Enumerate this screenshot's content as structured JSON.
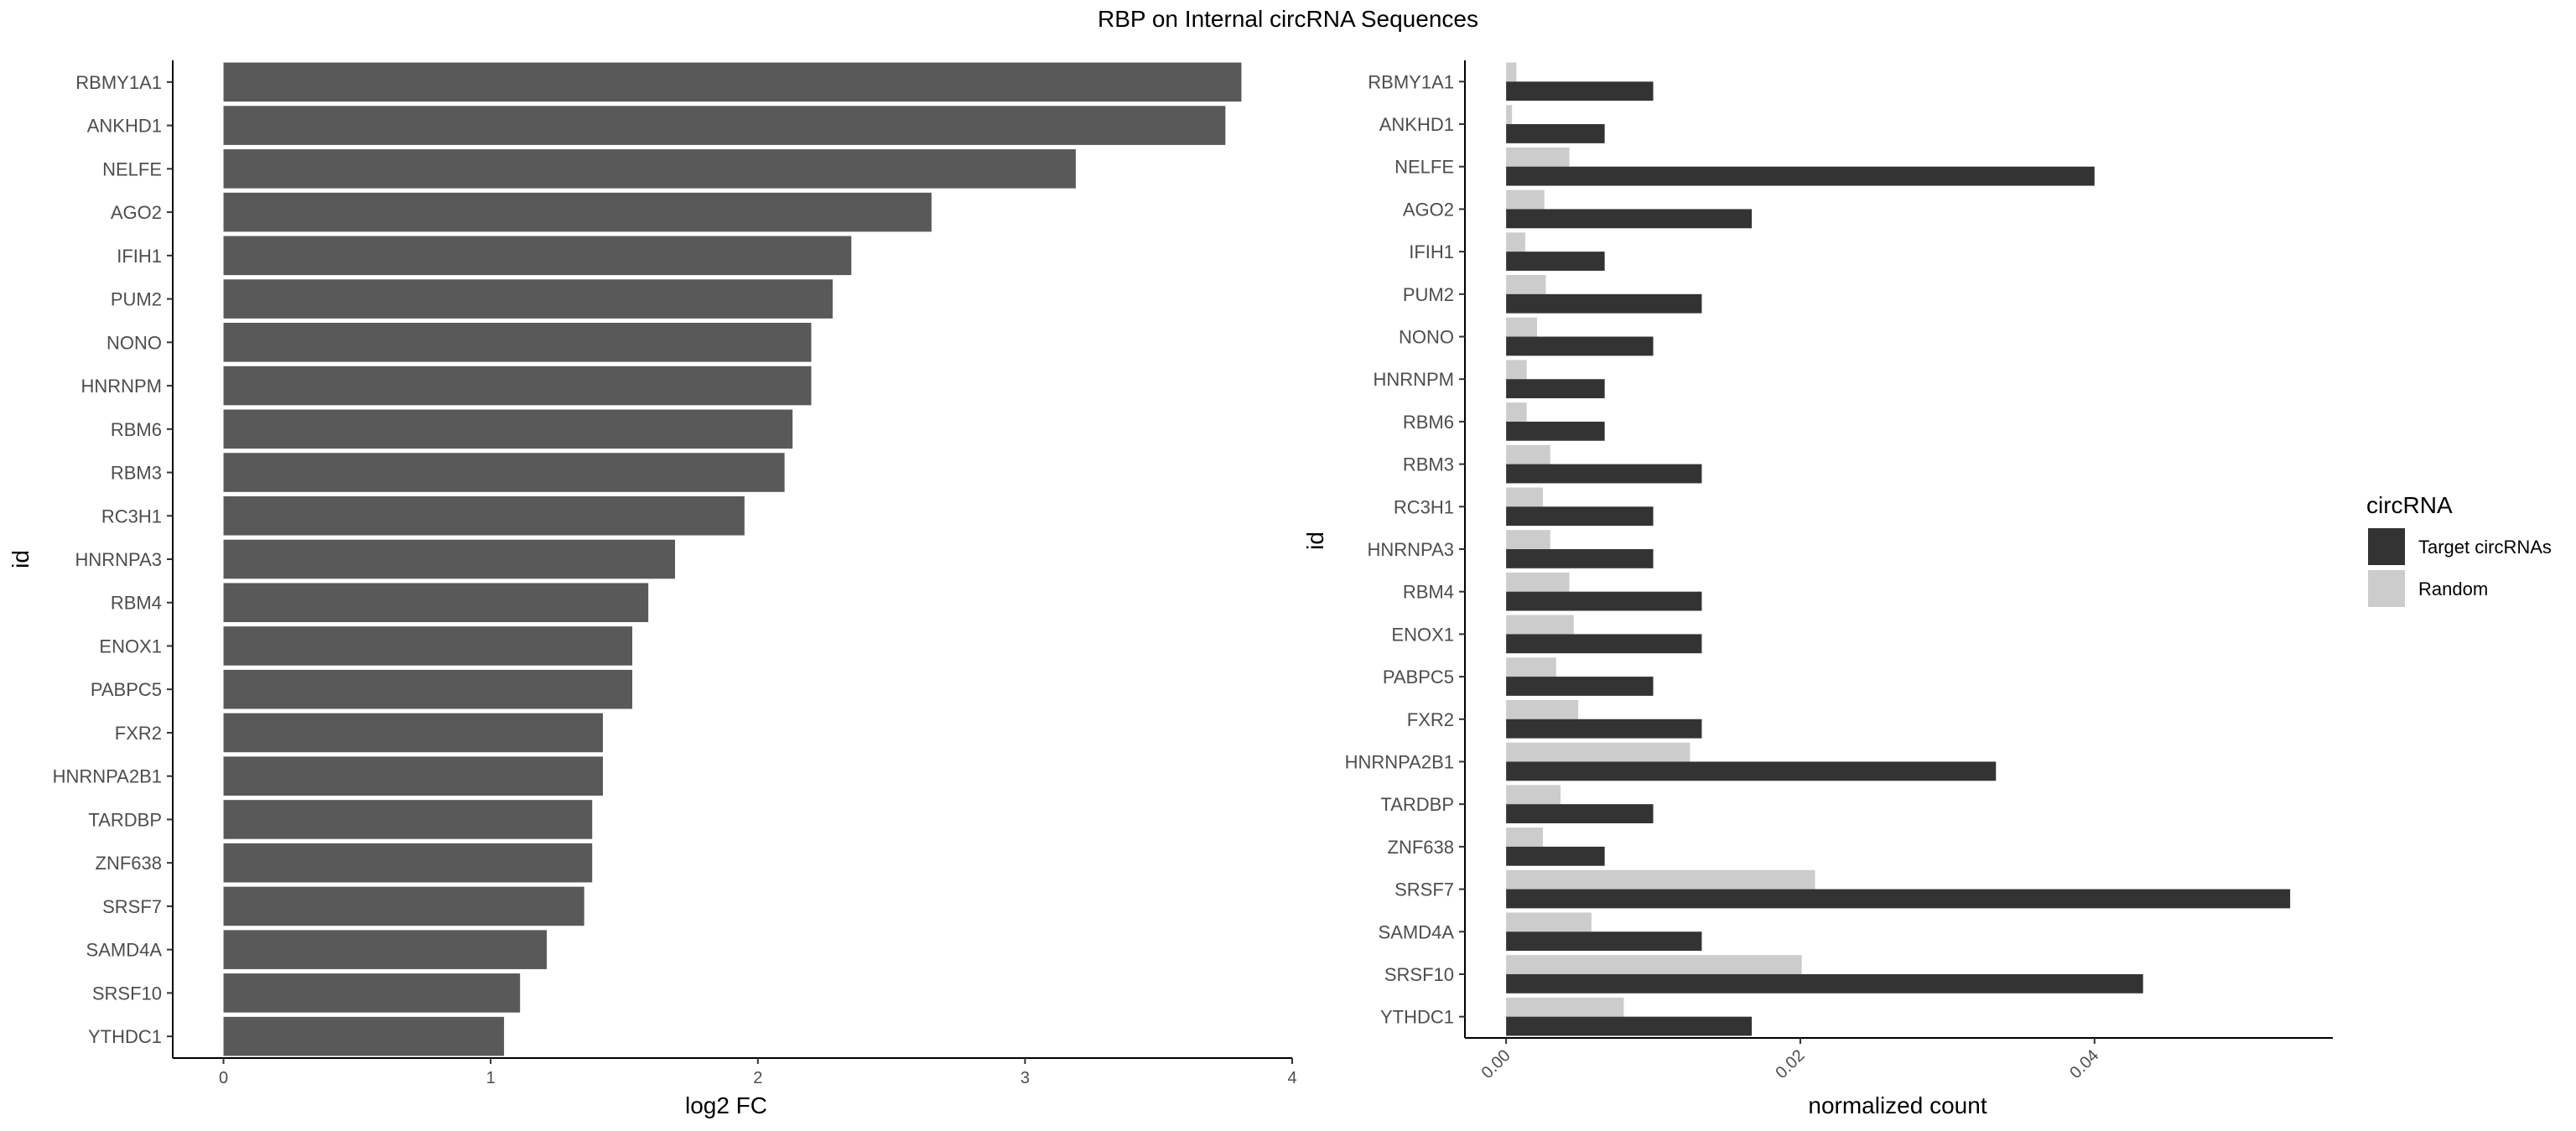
{
  "title": "RBP on Internal circRNA Sequences",
  "chart_data": [
    {
      "type": "bar",
      "orientation": "horizontal",
      "categories": [
        "RBMY1A1",
        "ANKHD1",
        "NELFE",
        "AGO2",
        "IFIH1",
        "PUM2",
        "NONO",
        "HNRNPM",
        "RBM6",
        "RBM3",
        "RC3H1",
        "HNRNPA3",
        "RBM4",
        "ENOX1",
        "PABPC5",
        "FXR2",
        "HNRNPA2B1",
        "TARDBP",
        "ZNF638",
        "SRSF7",
        "SAMD4A",
        "SRSF10",
        "YTHDC1"
      ],
      "values": [
        3.81,
        3.75,
        3.19,
        2.65,
        2.35,
        2.28,
        2.2,
        2.2,
        2.13,
        2.1,
        1.95,
        1.69,
        1.59,
        1.53,
        1.53,
        1.42,
        1.42,
        1.38,
        1.38,
        1.35,
        1.21,
        1.11,
        1.05
      ],
      "xlabel": "log2 FC",
      "ylabel": "id",
      "xlim": [
        -0.19,
        4.0
      ],
      "xticks": [
        0,
        1,
        2,
        3,
        4
      ],
      "xtick_labels": [
        "0",
        "1",
        "2",
        "3",
        "4"
      ],
      "bar_color": "#595959",
      "grid": false
    },
    {
      "type": "bar",
      "orientation": "horizontal",
      "grouping": "dodge",
      "categories": [
        "RBMY1A1",
        "ANKHD1",
        "NELFE",
        "AGO2",
        "IFIH1",
        "PUM2",
        "NONO",
        "HNRNPM",
        "RBM6",
        "RBM3",
        "RC3H1",
        "HNRNPA3",
        "RBM4",
        "ENOX1",
        "PABPC5",
        "FXR2",
        "HNRNPA2B1",
        "TARDBP",
        "ZNF638",
        "SRSF7",
        "SAMD4A",
        "SRSF10",
        "YTHDC1"
      ],
      "series": [
        {
          "name": "Target circRNAs",
          "color": "#333333",
          "values": [
            0.01,
            0.0067,
            0.04,
            0.0167,
            0.0067,
            0.0133,
            0.01,
            0.0067,
            0.0067,
            0.0133,
            0.01,
            0.01,
            0.0133,
            0.0133,
            0.01,
            0.0133,
            0.0333,
            0.01,
            0.0067,
            0.0533,
            0.0133,
            0.0433,
            0.0167
          ]
        },
        {
          "name": "Random",
          "color": "#cccccc",
          "values": [
            0.0007,
            0.0004,
            0.0043,
            0.0026,
            0.0013,
            0.0027,
            0.0021,
            0.0014,
            0.0014,
            0.003,
            0.0025,
            0.003,
            0.0043,
            0.0046,
            0.0034,
            0.0049,
            0.0125,
            0.0037,
            0.0025,
            0.021,
            0.0058,
            0.0201,
            0.008
          ]
        }
      ],
      "xlabel": "normalized count",
      "ylabel": "id",
      "xlim": [
        -0.0028,
        0.0562
      ],
      "xticks": [
        0.0,
        0.02,
        0.04
      ],
      "xtick_labels": [
        "0.00",
        "0.02",
        "0.04"
      ],
      "legend": {
        "title": "circRNA",
        "position": "right",
        "entries": [
          "Target circRNAs",
          "Random"
        ]
      },
      "grid": false
    }
  ]
}
